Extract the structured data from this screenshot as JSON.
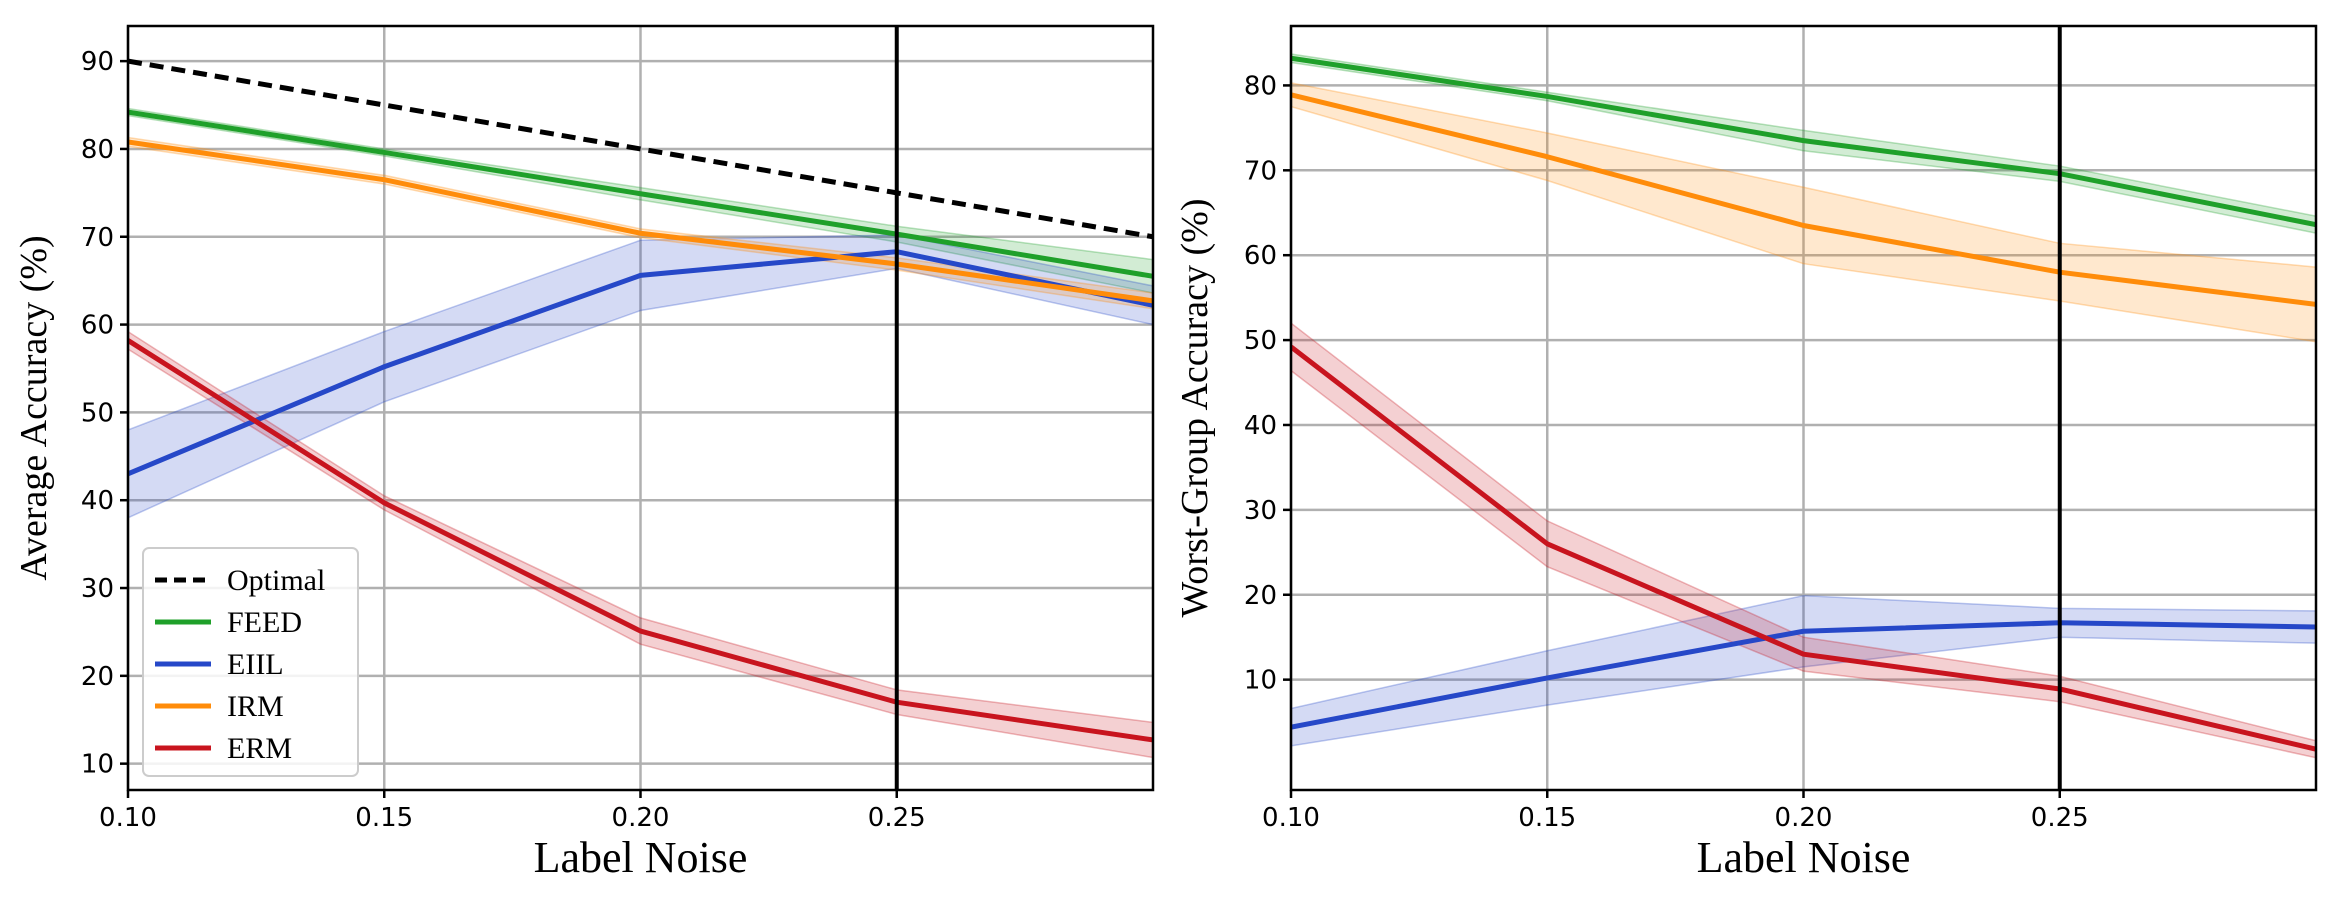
{
  "chart_data": [
    {
      "id": "left",
      "type": "line",
      "x": [
        0.1,
        0.15,
        0.2,
        0.25,
        0.3
      ],
      "x_ticks": [
        0.1,
        0.15,
        0.2,
        0.25
      ],
      "x_tick_labels": [
        "0.10",
        "0.15",
        "0.20",
        "0.25"
      ],
      "xlim": [
        0.1,
        0.3
      ],
      "ylim": [
        7,
        94
      ],
      "y_ticks": [
        10,
        20,
        30,
        40,
        50,
        60,
        70,
        80,
        90
      ],
      "y_tick_labels": [
        "10",
        "20",
        "30",
        "40",
        "50",
        "60",
        "70",
        "80",
        "90"
      ],
      "xlabel": "Label Noise",
      "ylabel": "Average Accuracy (%)",
      "grid": true,
      "vline_x": 0.25,
      "legend": {
        "placement": "lower-left",
        "entries": [
          "Optimal",
          "FEED",
          "EIIL",
          "IRM",
          "ERM"
        ]
      },
      "series": [
        {
          "name": "Optimal",
          "color": "#000000",
          "dashed": true,
          "values": [
            90,
            85,
            80,
            75,
            70
          ]
        },
        {
          "name": "FEED",
          "color": "#1fa02a",
          "values": [
            84.2,
            79.6,
            74.9,
            70.3,
            65.5
          ],
          "lower": [
            83.8,
            79.2,
            74.2,
            69.4,
            63.6
          ],
          "upper": [
            84.6,
            80.0,
            75.6,
            71.2,
            67.4
          ]
        },
        {
          "name": "EIIL",
          "color": "#2648c8",
          "values": [
            43,
            55.2,
            65.6,
            68.3,
            62.2
          ],
          "lower": [
            38,
            51.2,
            61.6,
            66.4,
            60
          ],
          "upper": [
            48,
            59.2,
            69.6,
            70.2,
            64.4
          ]
        },
        {
          "name": "IRM",
          "color": "#ff8c0a",
          "values": [
            80.8,
            76.5,
            70.4,
            66.9,
            62.7
          ],
          "lower": [
            80.3,
            76.0,
            69.9,
            66.2,
            61.8
          ],
          "upper": [
            81.3,
            77.0,
            70.9,
            67.6,
            63.6
          ]
        },
        {
          "name": "ERM",
          "color": "#c8141e",
          "values": [
            58.2,
            39.7,
            25.1,
            17.0,
            12.7
          ],
          "lower": [
            57.2,
            38.9,
            23.6,
            15.6,
            10.7
          ],
          "upper": [
            59.2,
            40.5,
            26.6,
            18.4,
            14.7
          ]
        }
      ]
    },
    {
      "id": "right",
      "type": "line",
      "x": [
        0.1,
        0.15,
        0.2,
        0.25,
        0.3
      ],
      "x_ticks": [
        0.1,
        0.15,
        0.2,
        0.25
      ],
      "x_tick_labels": [
        "0.10",
        "0.15",
        "0.20",
        "0.25"
      ],
      "xlim": [
        0.1,
        0.3
      ],
      "ylim": [
        -3,
        87
      ],
      "y_ticks": [
        10,
        20,
        30,
        40,
        50,
        60,
        70,
        80
      ],
      "y_tick_labels": [
        "10",
        "20",
        "30",
        "40",
        "50",
        "60",
        "70",
        "80"
      ],
      "xlabel": "Label Noise",
      "ylabel": "Worst-Group Accuracy (%)",
      "grid": true,
      "vline_x": 0.25,
      "series": [
        {
          "name": "FEED",
          "color": "#1fa02a",
          "values": [
            83.2,
            78.7,
            73.5,
            69.6,
            63.6
          ],
          "lower": [
            82.7,
            78.2,
            72.3,
            68.7,
            62.6
          ],
          "upper": [
            83.7,
            79.2,
            74.7,
            70.5,
            64.6
          ]
        },
        {
          "name": "IRM",
          "color": "#ff8c0a",
          "values": [
            78.9,
            71.6,
            63.5,
            58.0,
            54.2
          ],
          "lower": [
            77.5,
            68.8,
            59.0,
            54.6,
            49.8
          ],
          "upper": [
            80.3,
            74.4,
            68.0,
            61.4,
            58.6
          ]
        },
        {
          "name": "EIIL",
          "color": "#2648c8",
          "values": [
            4.4,
            10.2,
            15.7,
            16.7,
            16.2
          ],
          "lower": [
            2.2,
            7.0,
            11.5,
            15.0,
            14.3
          ],
          "upper": [
            6.6,
            13.4,
            19.9,
            18.4,
            18.1
          ]
        },
        {
          "name": "ERM",
          "color": "#c8141e",
          "values": [
            49.2,
            26.0,
            13.0,
            8.9,
            1.8
          ],
          "lower": [
            46.4,
            23.3,
            11.0,
            7.4,
            0.8
          ],
          "upper": [
            52.0,
            28.7,
            15.0,
            10.4,
            2.8
          ]
        }
      ]
    }
  ]
}
